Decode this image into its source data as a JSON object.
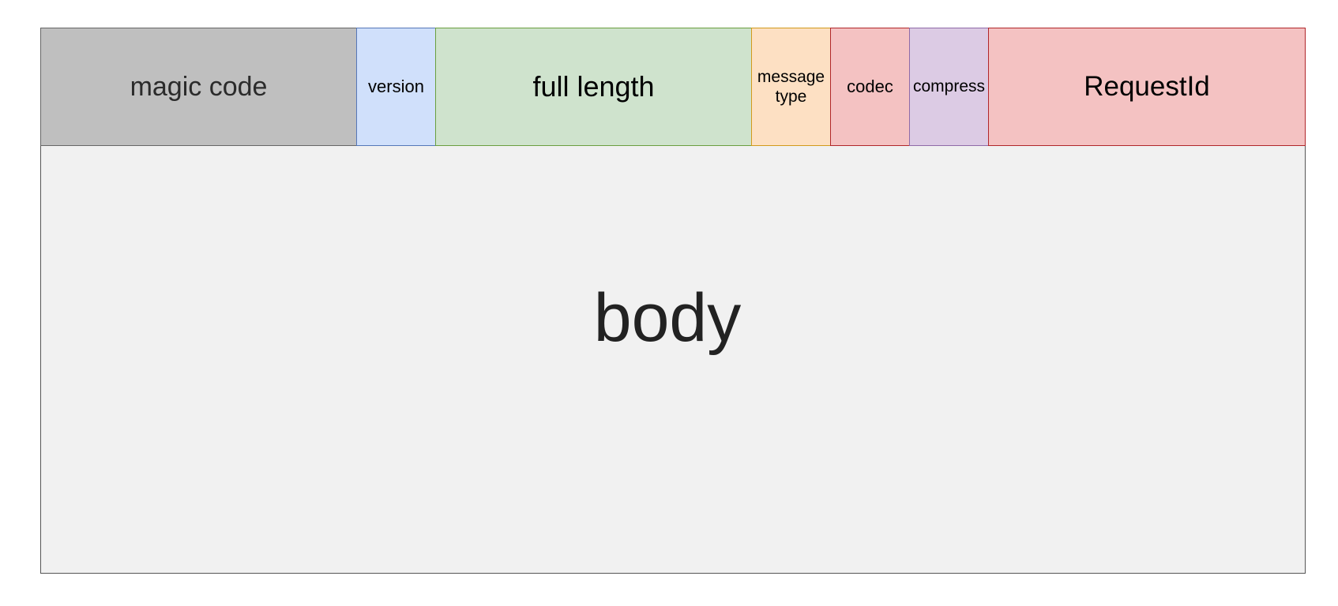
{
  "header": {
    "fields": [
      {
        "label": "magic code"
      },
      {
        "label": "version"
      },
      {
        "label": "full length"
      },
      {
        "label": "message\ntype"
      },
      {
        "label": "codec"
      },
      {
        "label": "compress"
      },
      {
        "label": "RequestId"
      }
    ]
  },
  "body": {
    "label": "body"
  },
  "colors": {
    "magic_code": "#bfbfbf",
    "version": "#d0e0fb",
    "full_length": "#cfe3cd",
    "message_type": "#fde0c3",
    "codec": "#f4c2c2",
    "compress": "#dccbe4",
    "request_id": "#f4c2c2",
    "body": "#f1f1f1"
  }
}
